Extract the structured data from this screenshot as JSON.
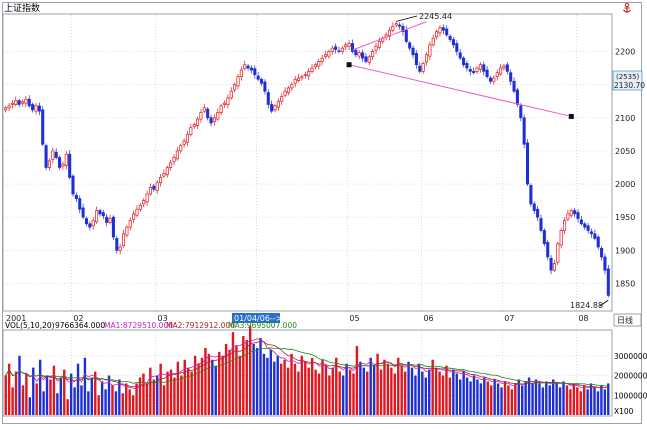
{
  "app": {
    "title": "上证指数",
    "period_tab": "日线",
    "corner_icon": "anchor-icon"
  },
  "colors": {
    "up": "#e0171f",
    "down": "#1f2fd6",
    "grid": "#c8c8c8",
    "trendline": "#e85fd0",
    "ma1": "#c91ec9",
    "ma2": "#b12323",
    "ma3": "#1a8a1a",
    "current_label_bg": "#e6eef8",
    "current_label_border": "#4aa3c7",
    "date_highlight_bg": "#2a6fc9"
  },
  "price_panel": {
    "y_ticks": [
      "2200",
      "2150",
      "2100",
      "2050",
      "2000",
      "1950",
      "1900",
      "1850"
    ],
    "current_label_top": "(2535)",
    "current_label_bottom": "2130.70",
    "high_label": "2245.44",
    "low_label": "1824.88",
    "x_labels": [
      "2001",
      "02",
      "03",
      "04",
      "05",
      "06",
      "07",
      "08"
    ],
    "date_highlight": "01/04/06-->"
  },
  "volume_panel": {
    "legend": {
      "prefix": "VOL(5,10,20)",
      "vol": "9766364.000",
      "ma1": "MA1:8729510.000",
      "ma2": "MA2:7912912.000",
      "ma3": "MA3:9695007.000"
    },
    "y_ticks": [
      "3000000",
      "2000000",
      "1000000"
    ],
    "scale_unit": "X100"
  },
  "chart_data": [
    {
      "type": "candlestick",
      "title": "上证指数",
      "ylim": [
        1810,
        2255
      ],
      "y_ticks": [
        1850,
        1900,
        1950,
        2000,
        2050,
        2100,
        2150,
        2200
      ],
      "annotations": [
        {
          "text": "2245.44",
          "value": 2245.44,
          "kind": "high"
        },
        {
          "text": "1824.88",
          "value": 1824.88,
          "kind": "low"
        },
        {
          "text": "2130.70",
          "value": 2130.7,
          "kind": "current"
        }
      ],
      "trendlines": [
        {
          "from": {
            "index": 102,
            "value": 2180
          },
          "to": {
            "index": 168,
            "value": 2102
          }
        },
        {
          "from": {
            "index": 103,
            "value": 2202
          },
          "to": {
            "index": 125,
            "value": 2245
          }
        }
      ],
      "closes": [
        2115,
        2118,
        2122,
        2126,
        2120,
        2124,
        2128,
        2118,
        2112,
        2118,
        2110,
        2060,
        2025,
        2035,
        2050,
        2040,
        2025,
        2030,
        2045,
        2010,
        1985,
        1978,
        1962,
        1950,
        1940,
        1935,
        1945,
        1960,
        1955,
        1952,
        1942,
        1948,
        1920,
        1900,
        1905,
        1925,
        1935,
        1945,
        1955,
        1962,
        1968,
        1975,
        1985,
        1995,
        1992,
        2002,
        2010,
        2016,
        2025,
        2032,
        2040,
        2050,
        2058,
        2065,
        2075,
        2085,
        2090,
        2098,
        2108,
        2115,
        2100,
        2092,
        2100,
        2108,
        2118,
        2122,
        2130,
        2140,
        2150,
        2162,
        2172,
        2180,
        2175,
        2172,
        2165,
        2158,
        2152,
        2140,
        2120,
        2110,
        2118,
        2125,
        2132,
        2140,
        2145,
        2150,
        2158,
        2160,
        2162,
        2165,
        2170,
        2175,
        2180,
        2185,
        2190,
        2195,
        2200,
        2205,
        2203,
        2200,
        2205,
        2210,
        2212,
        2200,
        2195,
        2198,
        2190,
        2185,
        2192,
        2200,
        2208,
        2215,
        2220,
        2225,
        2232,
        2238,
        2242,
        2238,
        2230,
        2215,
        2205,
        2195,
        2180,
        2170,
        2182,
        2195,
        2210,
        2220,
        2230,
        2236,
        2232,
        2225,
        2218,
        2210,
        2200,
        2190,
        2180,
        2175,
        2170,
        2168,
        2175,
        2180,
        2170,
        2162,
        2155,
        2160,
        2168,
        2175,
        2178,
        2170,
        2155,
        2140,
        2120,
        2100,
        2060,
        2000,
        1970,
        1960,
        1950,
        1930,
        1910,
        1890,
        1870,
        1880,
        1910,
        1930,
        1945,
        1955,
        1960,
        1955,
        1948,
        1940,
        1935,
        1930,
        1925,
        1918,
        1905,
        1890,
        1870,
        1832
      ],
      "volumes": [
        2.0,
        2.6,
        1.4,
        2.2,
        3.0,
        1.5,
        2.1,
        0.9,
        2.4,
        1.6,
        2.8,
        1.2,
        2.0,
        1.8,
        2.5,
        1.1,
        1.9,
        2.3,
        0.8,
        2.1,
        1.4,
        2.6,
        1.5,
        2.9,
        1.2,
        1.9,
        2.2,
        1.0,
        1.7,
        1.3,
        2.0,
        1.5,
        1.2,
        1.8,
        1.1,
        1.6,
        1.3,
        1.0,
        1.6,
        1.9,
        2.1,
        1.6,
        2.4,
        1.8,
        2.0,
        2.6,
        1.5,
        2.2,
        2.3,
        1.9,
        2.7,
        2.0,
        2.8,
        2.4,
        2.2,
        3.0,
        2.6,
        2.9,
        3.4,
        3.1,
        2.8,
        2.5,
        3.2,
        3.0,
        3.6,
        3.3,
        4.2,
        3.5,
        3.0,
        4.0,
        3.8,
        4.5,
        3.6,
        3.4,
        3.9,
        3.1,
        2.9,
        3.3,
        2.7,
        3.0,
        2.6,
        2.8,
        2.4,
        3.1,
        2.6,
        2.2,
        3.0,
        2.7,
        2.4,
        2.9,
        2.3,
        2.1,
        2.8,
        2.5,
        2.0,
        2.4,
        2.9,
        2.2,
        2.0,
        2.6,
        2.3,
        2.1,
        3.5,
        2.7,
        2.4,
        2.2,
        2.9,
        2.5,
        3.1,
        2.3,
        2.8,
        2.6,
        2.4,
        2.1,
        2.9,
        2.5,
        2.2,
        2.7,
        2.4,
        2.0,
        2.6,
        2.2,
        1.9,
        2.3,
        2.8,
        2.4,
        2.2,
        2.0,
        2.5,
        1.9,
        2.3,
        2.1,
        1.8,
        2.2,
        1.9,
        1.7,
        2.0,
        1.8,
        1.6,
        1.9,
        1.7,
        1.5,
        1.8,
        1.6,
        1.4,
        1.7,
        1.5,
        1.3,
        1.6,
        1.8,
        1.5,
        1.7,
        1.9,
        1.6,
        1.8,
        1.6,
        1.4,
        1.7,
        1.5,
        1.8,
        1.6,
        1.4,
        1.7,
        1.5,
        1.3,
        1.6,
        1.4,
        1.2,
        1.5,
        1.3,
        1.6,
        1.4,
        1.2,
        1.5,
        1.3,
        1.6
      ],
      "volume_ylim": [
        0,
        3800000
      ]
    }
  ]
}
